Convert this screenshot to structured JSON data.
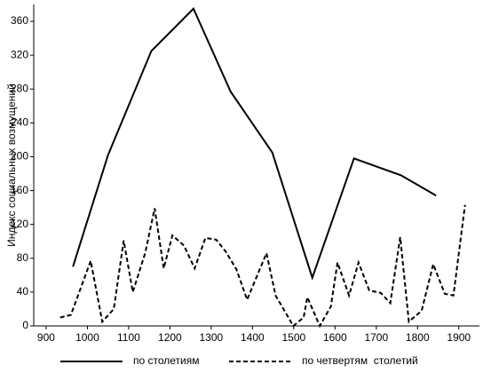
{
  "chart_data": {
    "type": "line",
    "y_label": "Индекс социальных возмущений",
    "xlim": [
      870,
      1950
    ],
    "ylim": [
      0,
      380
    ],
    "xticks": [
      900,
      1000,
      1100,
      1200,
      1300,
      1400,
      1500,
      1600,
      1700,
      1800,
      1900
    ],
    "yticks": [
      0,
      40,
      80,
      120,
      160,
      200,
      240,
      280,
      320,
      360
    ],
    "series": [
      {
        "name": "по столетиям",
        "color": "#000000",
        "dash": "solid",
        "x": [
          965,
          1050,
          1155,
          1257,
          1347,
          1448,
          1545,
          1646,
          1760,
          1845
        ],
        "values": [
          70,
          202,
          325,
          375,
          277,
          205,
          57,
          198,
          178,
          154
        ]
      },
      {
        "name": "по четвертям  столетий",
        "color": "#000000",
        "dash": "dashed",
        "x": [
          934,
          960,
          1008,
          1036,
          1064,
          1088,
          1110,
          1140,
          1163,
          1185,
          1206,
          1234,
          1260,
          1286,
          1312,
          1335,
          1361,
          1387,
          1434,
          1456,
          1499,
          1524,
          1533,
          1563,
          1590,
          1606,
          1634,
          1657,
          1683,
          1711,
          1734,
          1758,
          1779,
          1810,
          1838,
          1866,
          1887,
          1915
        ],
        "values": [
          10,
          13,
          77,
          5,
          20,
          101,
          40,
          86,
          139,
          68,
          107,
          95,
          68,
          104,
          102,
          88,
          67,
          31,
          86,
          36,
          0,
          10,
          34,
          0,
          23,
          75,
          36,
          75,
          42,
          39,
          27,
          105,
          5,
          18,
          73,
          38,
          36,
          143
        ]
      }
    ]
  }
}
